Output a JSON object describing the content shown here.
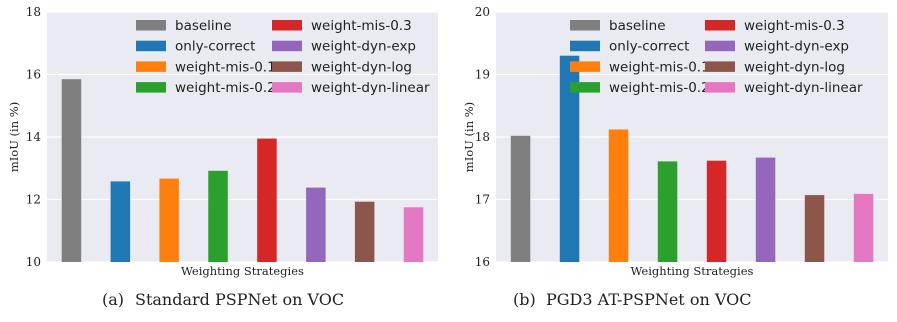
{
  "chart_data": [
    {
      "type": "bar",
      "categories": [
        "baseline",
        "only-correct",
        "weight-mis-0.1",
        "weight-mis-0.2",
        "weight-mis-0.3",
        "weight-dyn-exp",
        "weight-dyn-log",
        "weight-dyn-linear"
      ],
      "values": [
        15.85,
        12.58,
        12.67,
        12.92,
        13.95,
        12.38,
        11.93,
        11.75
      ],
      "colors": [
        "#7f7f7f",
        "#1f77b4",
        "#ff7f0e",
        "#2ca02c",
        "#d62728",
        "#9467bd",
        "#8c564b",
        "#e377c2"
      ],
      "xlabel": "Weighting Strategies",
      "ylabel": "mIoU (in %)",
      "ylim": [
        10,
        18
      ],
      "yticks": [
        "10",
        "12",
        "14",
        "16",
        "18"
      ],
      "caption_tag": "(a)",
      "caption": "Standard PSPNet on VOC",
      "grid": true,
      "legend_position": "top-right"
    },
    {
      "type": "bar",
      "categories": [
        "baseline",
        "only-correct",
        "weight-mis-0.1",
        "weight-mis-0.2",
        "weight-mis-0.3",
        "weight-dyn-exp",
        "weight-dyn-log",
        "weight-dyn-linear"
      ],
      "values": [
        18.02,
        19.3,
        18.12,
        17.61,
        17.62,
        17.67,
        17.07,
        17.09
      ],
      "colors": [
        "#7f7f7f",
        "#1f77b4",
        "#ff7f0e",
        "#2ca02c",
        "#d62728",
        "#9467bd",
        "#8c564b",
        "#e377c2"
      ],
      "xlabel": "Weighting Strategies",
      "ylabel": "mIoU (in %)",
      "ylim": [
        16,
        20
      ],
      "yticks": [
        "16",
        "17",
        "18",
        "19",
        "20"
      ],
      "caption_tag": "(b)",
      "caption": "PGD3 AT-PSPNet on VOC",
      "grid": true,
      "legend_position": "top-right"
    }
  ]
}
